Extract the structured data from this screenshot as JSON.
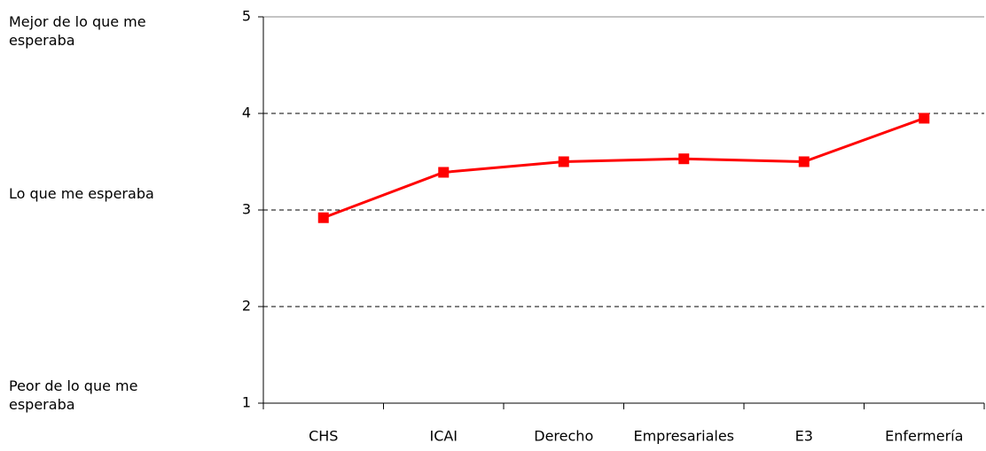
{
  "chart_data": {
    "type": "line",
    "categories": [
      "CHS",
      "ICAI",
      "Derecho",
      "Empresariales",
      "E3",
      "Enfermería"
    ],
    "series": [
      {
        "name": null,
        "color": "#ff0000",
        "values": [
          2.92,
          3.39,
          3.5,
          3.53,
          3.5,
          3.95
        ]
      }
    ],
    "ylim": [
      1,
      5
    ],
    "yticks": [
      1,
      2,
      3,
      4,
      5
    ],
    "grid": true,
    "annotations": [
      "Mejor de lo que me esperaba",
      "Lo que me esperaba",
      "Peor de lo que me esperaba"
    ]
  }
}
